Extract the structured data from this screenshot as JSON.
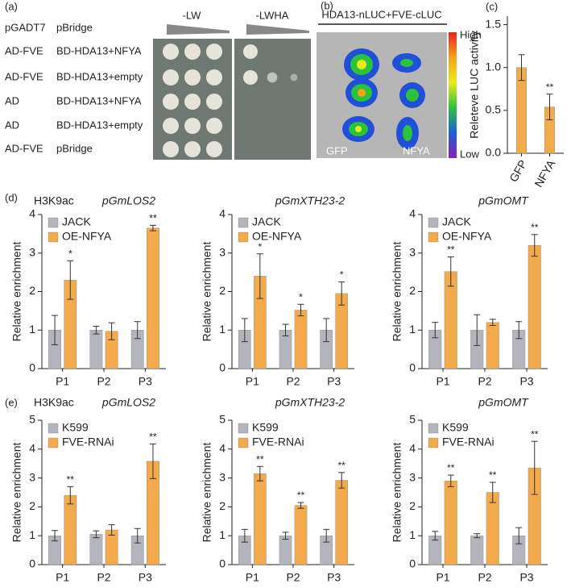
{
  "figure_a": {
    "panel_label": "(a)",
    "column_headers": [
      "pGADT7",
      "pBridge"
    ],
    "media": [
      "-LW",
      "-LWHA"
    ],
    "rows": [
      [
        "AD-FVE",
        "BD-HDA13+NFYA"
      ],
      [
        "AD-FVE",
        "BD-HDA13+empty"
      ],
      [
        "AD",
        "BD-HDA13+NFYA"
      ],
      [
        "AD",
        "BD-HDA13+empty"
      ],
      [
        "AD-FVE",
        "pBridge"
      ]
    ]
  },
  "figure_b": {
    "panel_label": "(b)",
    "title": "HDA13-nLUC+FVE-cLUC",
    "scale_high": "High",
    "scale_low": "Low",
    "labels": [
      "GFP",
      "NFYA"
    ]
  },
  "chart_data": [
    {
      "type": "bar",
      "panel_label": "(c)",
      "y_label": "Releteve LUC activity",
      "categories": [
        "GFP",
        "NFYA"
      ],
      "series": [
        {
          "color": "#f2aa4c",
          "values": [
            1.0,
            0.54
          ],
          "errors": [
            0.15,
            0.15
          ],
          "significance": [
            null,
            "**"
          ]
        }
      ],
      "ylim": [
        0,
        1.6
      ],
      "yticks": [
        {
          "value": 0,
          "label": "0.0"
        },
        {
          "value": 0.5,
          "label": "0.5"
        },
        {
          "value": 1,
          "label": "1.0"
        },
        {
          "value": 1.5,
          "label": "1.5"
        }
      ]
    },
    {
      "type": "bar",
      "panel_label": "(d)",
      "annotation": "H3K9ac",
      "title": "pGmLOS2",
      "y_label": "Relative enrichment",
      "categories": [
        "P1",
        "P2",
        "P3"
      ],
      "series": [
        {
          "name": "JACK",
          "color": "#b4b4bc",
          "values": [
            1,
            1,
            1
          ],
          "errors": [
            0.38,
            0.1,
            0.22
          ],
          "significance": [
            null,
            null,
            null
          ]
        },
        {
          "name": "OE-NFYA",
          "color": "#f2aa4c",
          "values": [
            2.3,
            0.97,
            3.65
          ],
          "errors": [
            0.5,
            0.22,
            0.07
          ],
          "significance": [
            "*",
            null,
            "**"
          ]
        }
      ],
      "ylim": [
        0,
        4
      ],
      "yticks": [
        0,
        1,
        2,
        3,
        4
      ]
    },
    {
      "type": "bar",
      "title": "pGmXTH23-2",
      "y_label": "Relative enrichment",
      "categories": [
        "P1",
        "P2",
        "P3"
      ],
      "series": [
        {
          "name": "JACK",
          "color": "#b4b4bc",
          "values": [
            1,
            1,
            1
          ],
          "errors": [
            0.3,
            0.15,
            0.3
          ],
          "significance": [
            null,
            null,
            null
          ]
        },
        {
          "name": "OE-NFYA",
          "color": "#f2aa4c",
          "values": [
            2.4,
            1.52,
            1.95
          ],
          "errors": [
            0.58,
            0.15,
            0.3
          ],
          "significance": [
            "*",
            "*",
            "*"
          ]
        }
      ],
      "ylim": [
        0,
        4
      ],
      "yticks": [
        0,
        1,
        2,
        3,
        4
      ]
    },
    {
      "type": "bar",
      "title": "pGmOMT",
      "y_label": "Relative enrichment",
      "categories": [
        "P1",
        "P2",
        "P3"
      ],
      "series": [
        {
          "name": "JACK",
          "color": "#b4b4bc",
          "values": [
            1,
            1,
            1
          ],
          "errors": [
            0.2,
            0.4,
            0.22
          ],
          "significance": [
            null,
            null,
            null
          ]
        },
        {
          "name": "OE-NFYA",
          "color": "#f2aa4c",
          "values": [
            2.52,
            1.2,
            3.2
          ],
          "errors": [
            0.38,
            0.08,
            0.28
          ],
          "significance": [
            "**",
            null,
            "**"
          ]
        }
      ],
      "ylim": [
        0,
        4
      ],
      "yticks": [
        0,
        1,
        2,
        3,
        4
      ]
    },
    {
      "type": "bar",
      "panel_label": "(e)",
      "annotation": "H3K9ac",
      "title": "pGmLOS2",
      "y_label": "Relative enrichment",
      "categories": [
        "P1",
        "P2",
        "P3"
      ],
      "series": [
        {
          "name": "K599",
          "color": "#b4b4bc",
          "values": [
            1,
            1.05,
            1
          ],
          "errors": [
            0.18,
            0.12,
            0.25
          ],
          "significance": [
            null,
            null,
            null
          ]
        },
        {
          "name": "FVE-RNAi",
          "color": "#f2aa4c",
          "values": [
            2.4,
            1.2,
            3.58
          ],
          "errors": [
            0.3,
            0.18,
            0.6
          ],
          "significance": [
            "**",
            null,
            "**"
          ]
        }
      ],
      "ylim": [
        0,
        5
      ],
      "yticks": [
        0,
        1,
        2,
        3,
        4,
        5
      ]
    },
    {
      "type": "bar",
      "title": "pGmXTH23-2",
      "y_label": "Relative enrichment",
      "categories": [
        "P1",
        "P2",
        "P3"
      ],
      "series": [
        {
          "name": "K599",
          "color": "#b4b4bc",
          "values": [
            1,
            1,
            1
          ],
          "errors": [
            0.22,
            0.12,
            0.22
          ],
          "significance": [
            null,
            null,
            null
          ]
        },
        {
          "name": "FVE-RNAi",
          "color": "#f2aa4c",
          "values": [
            3.15,
            2.05,
            2.92
          ],
          "errors": [
            0.25,
            0.1,
            0.27
          ],
          "significance": [
            "**",
            "**",
            "**"
          ]
        }
      ],
      "ylim": [
        0,
        5
      ],
      "yticks": [
        0,
        1,
        2,
        3,
        4,
        5
      ]
    },
    {
      "type": "bar",
      "title": "pGmOMT",
      "y_label": "Relative enrichment",
      "categories": [
        "P1",
        "P2",
        "P3"
      ],
      "series": [
        {
          "name": "K599",
          "color": "#b4b4bc",
          "values": [
            1,
            1,
            1
          ],
          "errors": [
            0.15,
            0.07,
            0.28
          ],
          "significance": [
            null,
            null,
            null
          ]
        },
        {
          "name": "FVE-RNAi",
          "color": "#f2aa4c",
          "values": [
            2.9,
            2.5,
            3.35
          ],
          "errors": [
            0.2,
            0.35,
            0.92
          ],
          "significance": [
            "**",
            "**",
            "**"
          ]
        }
      ],
      "ylim": [
        0,
        5
      ],
      "yticks": [
        0,
        1,
        2,
        3,
        4,
        5
      ]
    }
  ]
}
